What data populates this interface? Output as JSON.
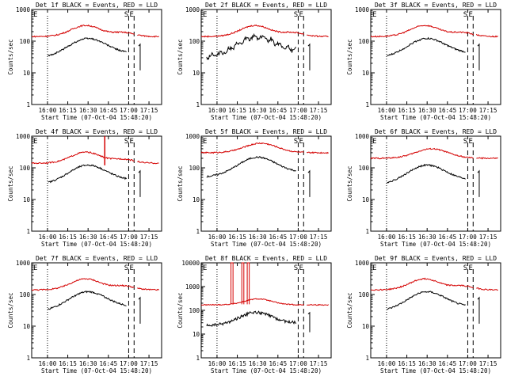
{
  "figure": {
    "layout": "3x3 grid",
    "colors": {
      "events": "#000000",
      "lld": "#d40000",
      "background": "#ffffff"
    }
  },
  "chart_data": [
    {
      "type": "line",
      "title": "Det 1f BLACK = Events, RED = LLD",
      "det": 1
    },
    {
      "type": "line",
      "title": "Det 2f BLACK = Events, RED = LLD",
      "det": 2
    },
    {
      "type": "line",
      "title": "Det 3f BLACK = Events, RED = LLD",
      "det": 3
    },
    {
      "type": "line",
      "title": "Det 4f BLACK = Events, RED = LLD",
      "det": 4
    },
    {
      "type": "line",
      "title": "Det 5f BLACK = Events, RED = LLD",
      "det": 5
    },
    {
      "type": "line",
      "title": "Det 6f BLACK = Events, RED = LLD",
      "det": 6
    },
    {
      "type": "line",
      "title": "Det 7f BLACK = Events, RED = LLD",
      "det": 7
    },
    {
      "type": "line",
      "title": "Det 8f BLACK = Events, RED = LLD",
      "det": 8
    },
    {
      "type": "line",
      "title": "Det 9f BLACK = Events, RED = LLD",
      "det": 9
    }
  ],
  "common": {
    "ylabel": "Counts/sec",
    "xlabel": "Start Time (07-Oct-04 15:48:20)",
    "xlim_minutes_after_start": [
      0,
      96
    ],
    "ylim": [
      1,
      1000
    ],
    "ylim_det8": [
      1,
      10000
    ],
    "yscale": "log",
    "xtick_labels": [
      "16:00",
      "16:15",
      "16:30",
      "16:45",
      "17:00",
      "17:15"
    ],
    "xtick_minutes": [
      11.67,
      26.67,
      41.67,
      56.67,
      71.67,
      86.67
    ],
    "ytick_labels": [
      "1",
      "10",
      "100",
      "1000"
    ],
    "ytick_labels_det8": [
      "1",
      "10",
      "100",
      "1000",
      "10000"
    ],
    "markers": [
      {
        "label": "E",
        "style": "dotted",
        "minute": 11.67
      },
      {
        "label": "S",
        "style": "dashed",
        "minute": 71.67
      },
      {
        "label": "E",
        "style": "dashed",
        "minute": 75.67
      }
    ]
  }
}
